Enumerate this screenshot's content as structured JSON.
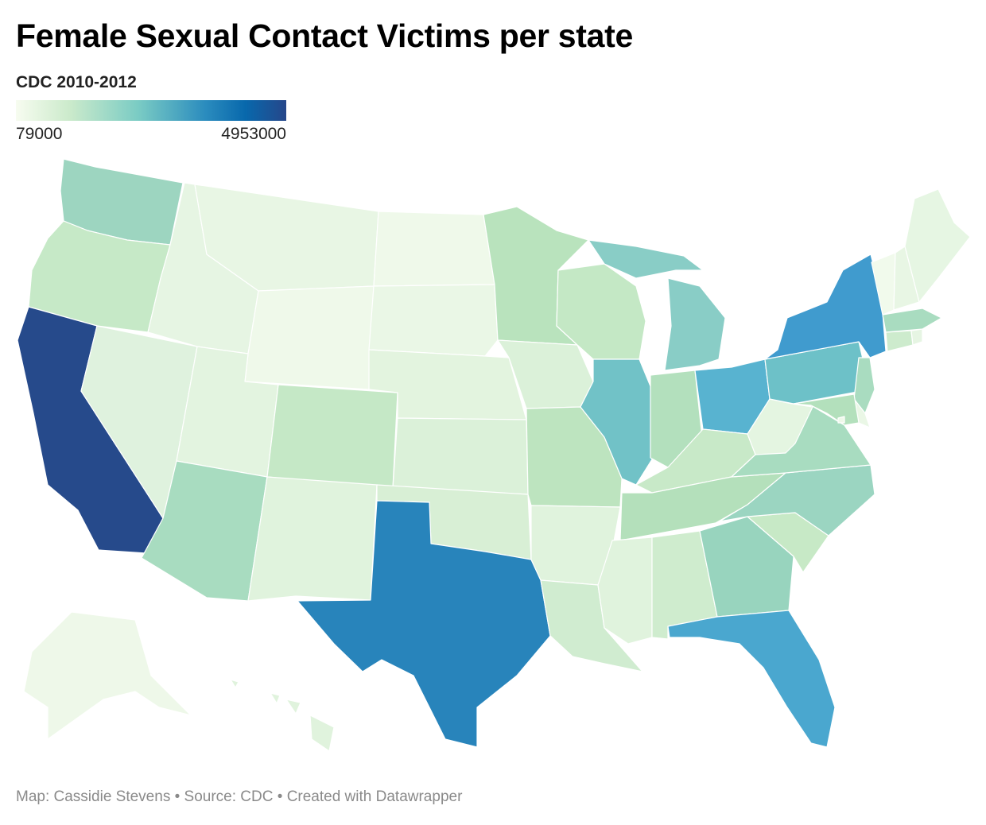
{
  "title": "Female Sexual Contact Victims per state",
  "subtitle": "CDC 2010-2012",
  "legend": {
    "min_label": "79000",
    "max_label": "4953000",
    "min": 79000,
    "max": 4953000,
    "colors": [
      "#f7fcf0",
      "#cbeacb",
      "#7bccc4",
      "#2b8cbe",
      "#084081",
      "#26478a"
    ]
  },
  "footer": {
    "credit": "Map: Cassidie Stevens",
    "source": "Source: CDC",
    "tool": "Created with Datawrapper",
    "separator": "•"
  },
  "states": {
    "WA": "#9dd5c0",
    "OR": "#c6e9c7",
    "CA": "#264a8b",
    "NV": "#dff2de",
    "ID": "#e6f5e3",
    "MT": "#e8f6e4",
    "WY": "#eff9ea",
    "UT": "#e3f4e0",
    "AZ": "#a8dcc0",
    "NM": "#e0f3dd",
    "CO": "#c5e8c6",
    "ND": "#eff9ea",
    "SD": "#eaf7e6",
    "NE": "#e3f4df",
    "KS": "#dbf1d9",
    "OK": "#d8efd5",
    "TX": "#2884bb",
    "MN": "#b9e3bd",
    "IA": "#dbf1d9",
    "MO": "#bde4bf",
    "AR": "#e0f3dd",
    "LA": "#d0ecd0",
    "WI": "#c4e8c5",
    "IL": "#71c2c7",
    "MI": "#89cdc6",
    "IN": "#b3e0bd",
    "OH": "#58b3d0",
    "KY": "#c8e9c8",
    "TN": "#b4e0bb",
    "MS": "#e0f3dd",
    "AL": "#cfecce",
    "GA": "#98d4be",
    "FL": "#4aa7cf",
    "SC": "#c7e9c6",
    "NC": "#9bd5c1",
    "VA": "#a8dcc0",
    "WV": "#e4f5e1",
    "PA": "#6dc1c8",
    "NY": "#409bce",
    "ME": "#e6f6e3",
    "NH": "#e8f6e4",
    "VT": "#f1faec",
    "MA": "#a9dcc0",
    "CT": "#cdebcd",
    "RI": "#e6f5e3",
    "NJ": "#a9dcc0",
    "DE": "#eaf7e6",
    "MD": "#b3e0bc",
    "DC": "#eff9ea",
    "AK": "#eef8e9",
    "HI": "#e0f3dd"
  }
}
